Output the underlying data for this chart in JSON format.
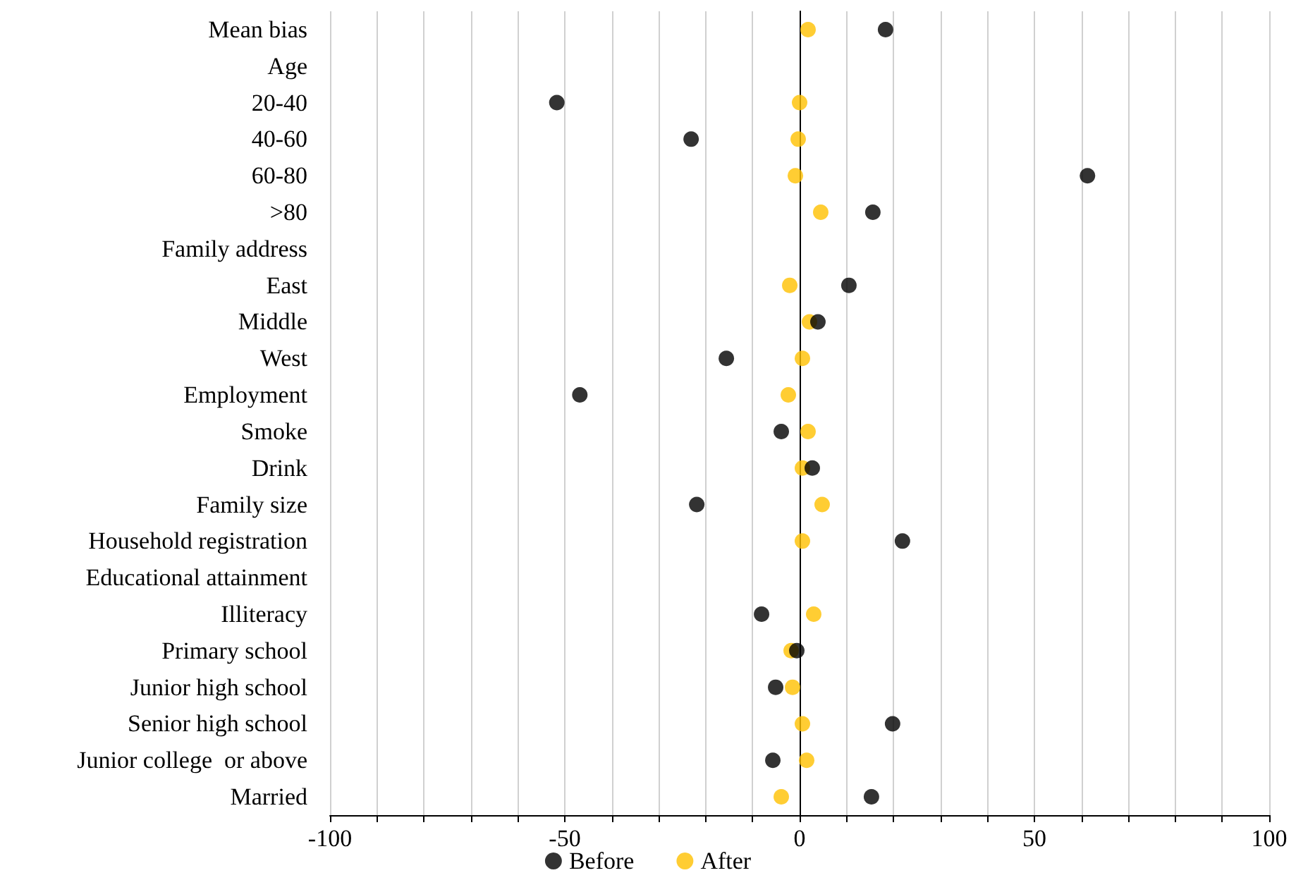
{
  "chart_data": {
    "type": "scatter",
    "categories": [
      "Mean bias",
      "Age",
      "20-40",
      "40-60",
      "60-80",
      ">80",
      "Family address",
      "East",
      "Middle",
      "West",
      "Employment",
      "Smoke",
      "Drink",
      "Family size",
      "Household registration",
      "Educational attainment",
      "Illiteracy",
      "Primary school",
      "Junior high school",
      "Senior high school",
      "Junior college  or above",
      "Married"
    ],
    "series": [
      {
        "name": "Before",
        "color": "#000000",
        "values": [
          18.3,
          null,
          -51.7,
          -23.1,
          61.3,
          15.6,
          null,
          10.5,
          3.9,
          -15.6,
          -46.8,
          -3.9,
          2.7,
          -21.9,
          21.9,
          null,
          -8.1,
          -0.6,
          -5.1,
          19.8,
          -5.7,
          15.3
        ]
      },
      {
        "name": "After",
        "color": "#ffc000",
        "values": [
          1.8,
          null,
          0,
          -0.3,
          -0.9,
          4.5,
          null,
          -2.1,
          2.1,
          0.6,
          -2.4,
          1.8,
          0.6,
          4.8,
          0.6,
          null,
          3.0,
          -1.8,
          -1.5,
          0.6,
          1.5,
          -3.9
        ]
      }
    ],
    "xlim": [
      -100,
      100
    ],
    "xticks": [
      -100,
      {
        "value": -90,
        "label": null
      },
      {
        "value": -80,
        "label": null
      },
      {
        "value": -70,
        "label": null
      },
      {
        "value": -60,
        "label": null
      },
      -50,
      {
        "value": -40,
        "label": null
      },
      {
        "value": -30,
        "label": null
      },
      {
        "value": -20,
        "label": null
      },
      {
        "value": -10,
        "label": null
      },
      0,
      {
        "value": 10,
        "label": null
      },
      {
        "value": 20,
        "label": null
      },
      {
        "value": 30,
        "label": null
      },
      {
        "value": 40,
        "label": null
      },
      50,
      {
        "value": 60,
        "label": null
      },
      {
        "value": 70,
        "label": null
      },
      {
        "value": 80,
        "label": null
      },
      {
        "value": 90,
        "label": null
      },
      100
    ],
    "orientation": "horizontal",
    "grid": "x",
    "legend": "bottom",
    "marker": "circle"
  }
}
